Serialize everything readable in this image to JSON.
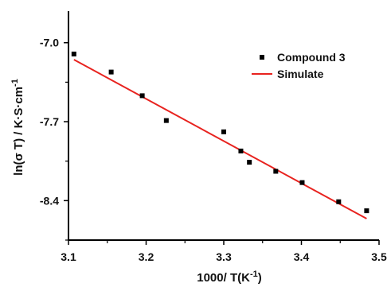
{
  "chart_data": {
    "type": "scatter",
    "title": "",
    "xlabel": "1000/ T(K",
    "xlabel_sup": "-1",
    "xlabel_tail": ")",
    "ylabel": "ln(σ T) / K·S·cm",
    "ylabel_sup": "-1",
    "xlim": [
      3.1,
      3.5
    ],
    "ylim": [
      -8.75,
      -6.72
    ],
    "x_ticks": [
      3.1,
      3.2,
      3.3,
      3.4,
      3.5
    ],
    "x_tick_labels": [
      "3.1",
      "3.2",
      "3.3",
      "3.4",
      "3.5"
    ],
    "y_ticks": [
      -7.0,
      -7.7,
      -8.4
    ],
    "y_tick_labels": [
      "-7.0",
      "-7.7",
      "-8.4"
    ],
    "grid": false,
    "legend_position": "top-right",
    "series": [
      {
        "name": "Compound 3",
        "type": "scatter",
        "marker": "square",
        "color": "#000000",
        "x": [
          3.107,
          3.155,
          3.195,
          3.226,
          3.3,
          3.322,
          3.333,
          3.367,
          3.401,
          3.448,
          3.484
        ],
        "y": [
          -7.1,
          -7.26,
          -7.47,
          -7.69,
          -7.79,
          -7.96,
          -8.06,
          -8.14,
          -8.24,
          -8.41,
          -8.49
        ]
      },
      {
        "name": "Simulate",
        "type": "line",
        "color": "#e8231f",
        "x": [
          3.107,
          3.484
        ],
        "y": [
          -7.15,
          -8.56
        ]
      }
    ]
  }
}
